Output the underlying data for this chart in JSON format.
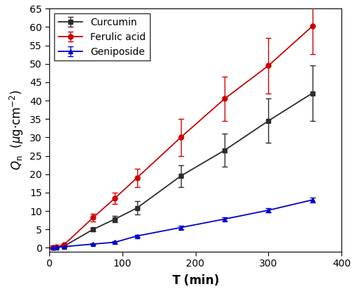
{
  "xlabel": "T (min)",
  "xlim": [
    0,
    400
  ],
  "ylim": [
    -1,
    65
  ],
  "xticks": [
    0,
    100,
    200,
    300,
    400
  ],
  "yticks": [
    0,
    5,
    10,
    15,
    20,
    25,
    30,
    35,
    40,
    45,
    50,
    55,
    60,
    65
  ],
  "curcumin": {
    "x": [
      5,
      10,
      20,
      60,
      90,
      120,
      180,
      240,
      300,
      360
    ],
    "y": [
      0.0,
      0.15,
      0.4,
      5.0,
      7.8,
      10.8,
      19.5,
      26.5,
      34.5,
      42.0
    ],
    "yerr": [
      0.05,
      0.1,
      0.15,
      0.5,
      0.8,
      1.8,
      3.0,
      4.5,
      6.0,
      7.5
    ],
    "color": "#2b2b2b",
    "marker": "s",
    "label": "Curcumin"
  },
  "ferulic_acid": {
    "x": [
      5,
      10,
      20,
      60,
      90,
      120,
      180,
      240,
      300,
      360
    ],
    "y": [
      0.0,
      0.3,
      0.8,
      8.2,
      13.5,
      19.0,
      30.0,
      40.5,
      49.5,
      60.2
    ],
    "yerr": [
      0.05,
      0.15,
      0.3,
      1.0,
      1.5,
      2.5,
      5.0,
      6.0,
      7.5,
      7.5
    ],
    "color": "#cc0000",
    "marker": "o",
    "label": "Ferulic acid"
  },
  "geniposide": {
    "x": [
      5,
      10,
      20,
      60,
      90,
      120,
      180,
      240,
      300,
      360
    ],
    "y": [
      0.0,
      0.1,
      0.3,
      1.0,
      1.5,
      3.2,
      5.5,
      7.8,
      10.2,
      13.0
    ],
    "yerr": [
      0.03,
      0.05,
      0.1,
      0.2,
      0.25,
      0.3,
      0.4,
      0.5,
      0.5,
      0.7
    ],
    "color": "#0000cc",
    "marker": "^",
    "label": "Geniposide"
  },
  "linewidth": 1.3,
  "markersize": 5,
  "capsize": 3,
  "elinewidth": 1.0,
  "legend_fontsize": 10,
  "axis_label_fontsize": 12,
  "tick_fontsize": 10,
  "background_color": "#ffffff"
}
